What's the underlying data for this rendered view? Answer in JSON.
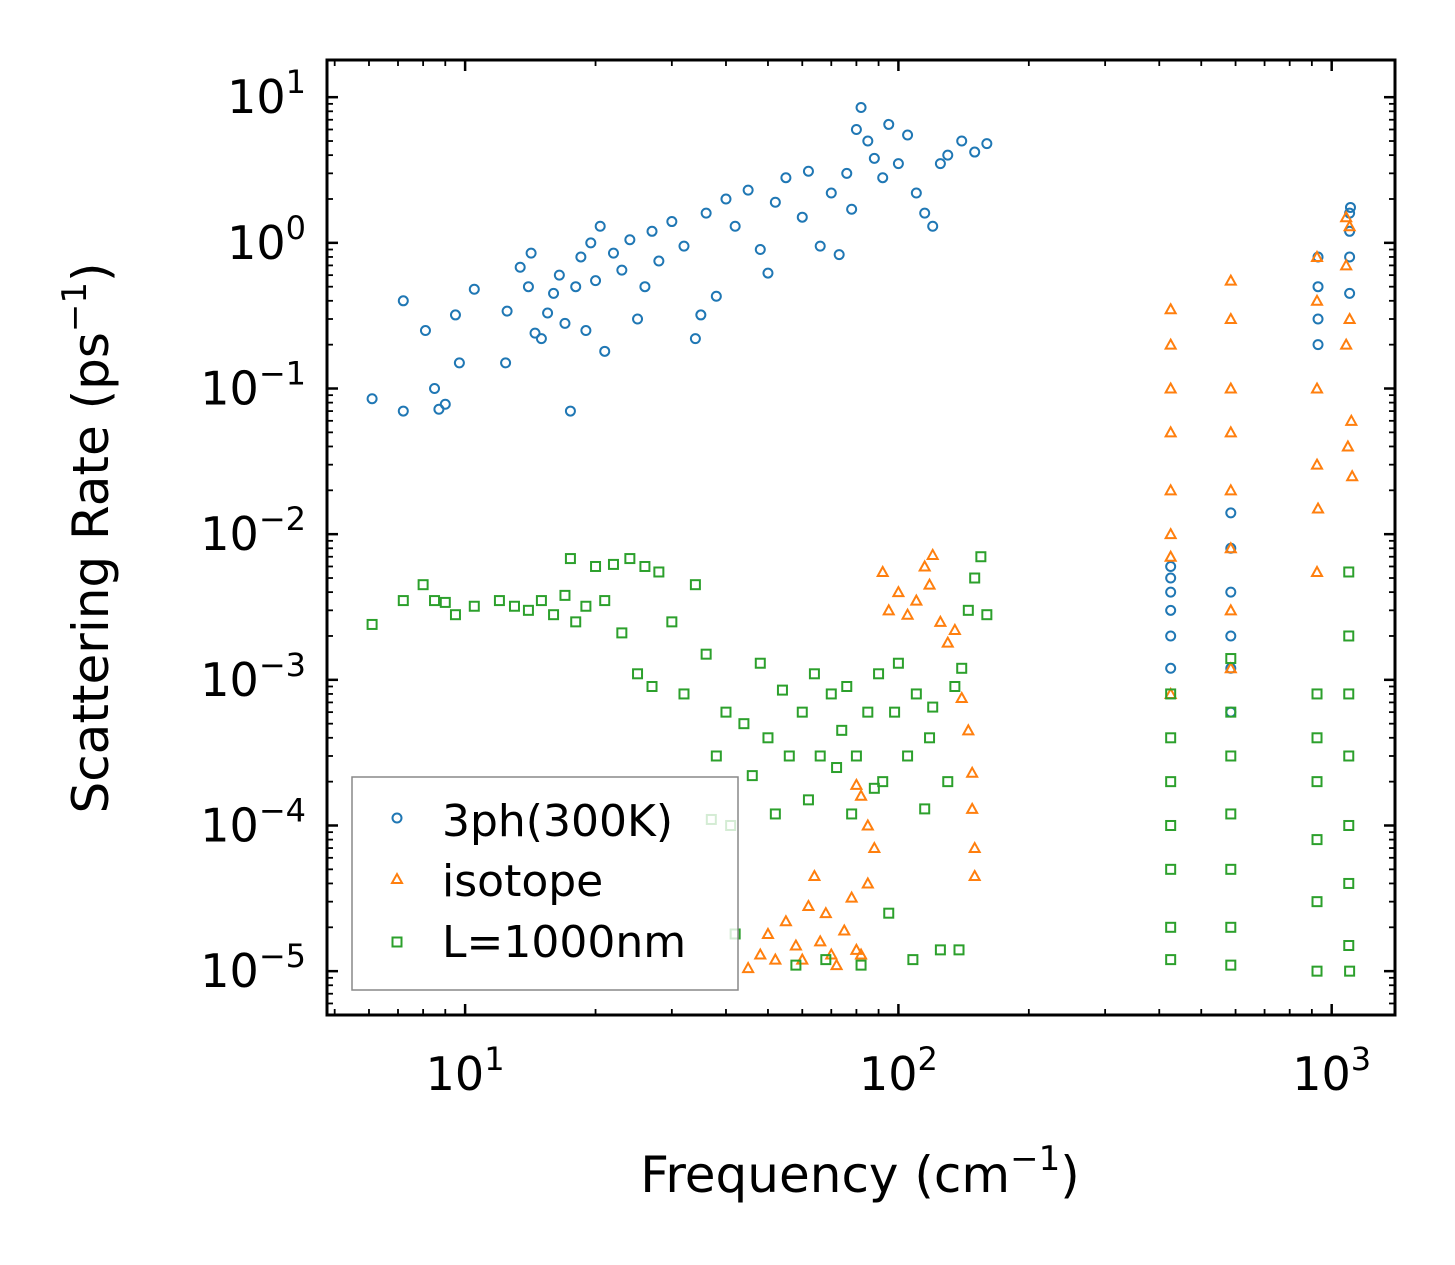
{
  "chart_data": {
    "type": "scatter",
    "title": "",
    "xlabel_main": "Frequency (cm",
    "xlabel_sup": "−1",
    "xlabel_close": ")",
    "ylabel_main": "Scattering Rate (ps",
    "ylabel_sup": "−1",
    "ylabel_close": ")",
    "xscale": "log",
    "yscale": "log",
    "xlim": [
      4.8,
      1400
    ],
    "ylim": [
      5e-06,
      18
    ],
    "x_ticks": [
      {
        "value": 10,
        "base": "10",
        "exp": "1"
      },
      {
        "value": 100,
        "base": "10",
        "exp": "2"
      },
      {
        "value": 1000,
        "base": "10",
        "exp": "3"
      }
    ],
    "y_ticks": [
      {
        "value": 10,
        "base": "10",
        "exp": "1"
      },
      {
        "value": 1,
        "base": "10",
        "exp": "0"
      },
      {
        "value": 0.1,
        "base": "10",
        "exp": "−1"
      },
      {
        "value": 0.01,
        "base": "10",
        "exp": "−2"
      },
      {
        "value": 0.001,
        "base": "10",
        "exp": "−3"
      },
      {
        "value": 0.0001,
        "base": "10",
        "exp": "−4"
      },
      {
        "value": 1e-05,
        "base": "10",
        "exp": "−5"
      }
    ],
    "legend_position": "lower-left",
    "series": [
      {
        "name": "3ph(300K)",
        "marker": "circle",
        "color": "#1f77b4",
        "points": [
          [
            6.1,
            0.085
          ],
          [
            7.2,
            0.07
          ],
          [
            7.2,
            0.4
          ],
          [
            8.1,
            0.25
          ],
          [
            8.5,
            0.1
          ],
          [
            8.7,
            0.072
          ],
          [
            9.0,
            0.078
          ],
          [
            9.5,
            0.32
          ],
          [
            9.7,
            0.15
          ],
          [
            10.5,
            0.48
          ],
          [
            12.4,
            0.15
          ],
          [
            12.5,
            0.34
          ],
          [
            13.4,
            0.68
          ],
          [
            14.0,
            0.5
          ],
          [
            14.2,
            0.85
          ],
          [
            14.5,
            0.24
          ],
          [
            15.0,
            0.22
          ],
          [
            15.5,
            0.33
          ],
          [
            16.0,
            0.45
          ],
          [
            16.5,
            0.6
          ],
          [
            17.0,
            0.28
          ],
          [
            17.5,
            0.07
          ],
          [
            18.0,
            0.5
          ],
          [
            18.5,
            0.8
          ],
          [
            19.0,
            0.25
          ],
          [
            19.5,
            1.0
          ],
          [
            20.0,
            0.55
          ],
          [
            20.5,
            1.3
          ],
          [
            21.0,
            0.18
          ],
          [
            22.0,
            0.85
          ],
          [
            23.0,
            0.65
          ],
          [
            24.0,
            1.05
          ],
          [
            25.0,
            0.3
          ],
          [
            26.0,
            0.5
          ],
          [
            27.0,
            1.2
          ],
          [
            28.0,
            0.75
          ],
          [
            30.0,
            1.4
          ],
          [
            32.0,
            0.95
          ],
          [
            34.0,
            0.22
          ],
          [
            35.0,
            0.32
          ],
          [
            36.0,
            1.6
          ],
          [
            38.0,
            0.43
          ],
          [
            40.0,
            2.0
          ],
          [
            42.0,
            1.3
          ],
          [
            45.0,
            2.3
          ],
          [
            48.0,
            0.9
          ],
          [
            50.0,
            0.62
          ],
          [
            52.0,
            1.9
          ],
          [
            55.0,
            2.8
          ],
          [
            60.0,
            1.5
          ],
          [
            62.0,
            3.1
          ],
          [
            66.0,
            0.95
          ],
          [
            70.0,
            2.2
          ],
          [
            73.0,
            0.83
          ],
          [
            76.0,
            3.0
          ],
          [
            78.0,
            1.7
          ],
          [
            80.0,
            6.0
          ],
          [
            82.0,
            8.5
          ],
          [
            85.0,
            5.0
          ],
          [
            88.0,
            3.8
          ],
          [
            92.0,
            2.8
          ],
          [
            95.0,
            6.5
          ],
          [
            100.0,
            3.5
          ],
          [
            105.0,
            5.5
          ],
          [
            110.0,
            2.2
          ],
          [
            115.0,
            1.6
          ],
          [
            120.0,
            1.3
          ],
          [
            125.0,
            3.5
          ],
          [
            130.0,
            4.0
          ],
          [
            140.0,
            5.0
          ],
          [
            150.0,
            4.2
          ],
          [
            160.0,
            4.8
          ],
          [
            425,
            0.0012
          ],
          [
            425,
            0.002
          ],
          [
            425,
            0.003
          ],
          [
            425,
            0.004
          ],
          [
            425,
            0.005
          ],
          [
            425,
            0.006
          ],
          [
            585,
            0.0006
          ],
          [
            585,
            0.0012
          ],
          [
            585,
            0.002
          ],
          [
            585,
            0.004
          ],
          [
            585,
            0.008
          ],
          [
            585,
            0.014
          ],
          [
            930,
            0.2
          ],
          [
            930,
            0.3
          ],
          [
            930,
            0.5
          ],
          [
            930,
            0.8
          ],
          [
            1100,
            0.45
          ],
          [
            1100,
            0.8
          ],
          [
            1100,
            1.2
          ],
          [
            1100,
            1.6
          ],
          [
            1105,
            1.75
          ]
        ]
      },
      {
        "name": "isotope",
        "marker": "triangle",
        "color": "#ff7f0e",
        "points": [
          [
            45,
            1.05e-05
          ],
          [
            48,
            1.3e-05
          ],
          [
            50,
            1.8e-05
          ],
          [
            52,
            1.2e-05
          ],
          [
            55,
            2.2e-05
          ],
          [
            58,
            1.5e-05
          ],
          [
            60,
            1.2e-05
          ],
          [
            62,
            2.8e-05
          ],
          [
            64,
            4.5e-05
          ],
          [
            66,
            1.6e-05
          ],
          [
            68,
            2.5e-05
          ],
          [
            70,
            1.3e-05
          ],
          [
            72,
            1.1e-05
          ],
          [
            75,
            1.9e-05
          ],
          [
            78,
            3.2e-05
          ],
          [
            80,
            1.4e-05
          ],
          [
            80,
            0.00019
          ],
          [
            82,
            0.00016
          ],
          [
            82,
            1.3e-05
          ],
          [
            85,
            4e-05
          ],
          [
            85,
            0.0001
          ],
          [
            88,
            7e-05
          ],
          [
            92,
            0.0055
          ],
          [
            95,
            0.003
          ],
          [
            100,
            0.004
          ],
          [
            105,
            0.0028
          ],
          [
            110,
            0.0035
          ],
          [
            115,
            0.006
          ],
          [
            118,
            0.0045
          ],
          [
            120,
            0.0072
          ],
          [
            125,
            0.0025
          ],
          [
            130,
            0.0018
          ],
          [
            135,
            0.0022
          ],
          [
            140,
            0.00075
          ],
          [
            145,
            0.00045
          ],
          [
            148,
            0.00023
          ],
          [
            148,
            0.00013
          ],
          [
            150,
            7e-05
          ],
          [
            150,
            4.5e-05
          ],
          [
            425,
            0.35
          ],
          [
            425,
            0.2
          ],
          [
            425,
            0.1
          ],
          [
            425,
            0.05
          ],
          [
            425,
            0.02
          ],
          [
            425,
            0.01
          ],
          [
            425,
            0.007
          ],
          [
            425,
            0.0008
          ],
          [
            585,
            0.55
          ],
          [
            585,
            0.3
          ],
          [
            585,
            0.1
          ],
          [
            585,
            0.05
          ],
          [
            585,
            0.02
          ],
          [
            585,
            0.008
          ],
          [
            585,
            0.003
          ],
          [
            585,
            0.0012
          ],
          [
            925,
            0.8
          ],
          [
            925,
            0.4
          ],
          [
            925,
            0.1
          ],
          [
            925,
            0.03
          ],
          [
            925,
            0.0055
          ],
          [
            930,
            0.015
          ],
          [
            1080,
            1.5
          ],
          [
            1080,
            0.7
          ],
          [
            1080,
            0.2
          ],
          [
            1090,
            0.04
          ],
          [
            1100,
            1.3
          ],
          [
            1100,
            0.3
          ],
          [
            1110,
            0.06
          ],
          [
            1115,
            0.025
          ]
        ]
      },
      {
        "name": "L=1000nm",
        "marker": "square",
        "color": "#2ca02c",
        "points": [
          [
            6.1,
            0.0024
          ],
          [
            7.2,
            0.0035
          ],
          [
            8.0,
            0.0045
          ],
          [
            8.5,
            0.0035
          ],
          [
            9.0,
            0.0034
          ],
          [
            9.5,
            0.0028
          ],
          [
            10.5,
            0.0032
          ],
          [
            12.0,
            0.0035
          ],
          [
            13.0,
            0.0032
          ],
          [
            14.0,
            0.003
          ],
          [
            15.0,
            0.0035
          ],
          [
            16.0,
            0.0028
          ],
          [
            17.0,
            0.0038
          ],
          [
            17.5,
            0.0068
          ],
          [
            18.0,
            0.0025
          ],
          [
            19.0,
            0.0032
          ],
          [
            20.0,
            0.006
          ],
          [
            21.0,
            0.0035
          ],
          [
            22.0,
            0.0062
          ],
          [
            23.0,
            0.0021
          ],
          [
            24.0,
            0.0068
          ],
          [
            25.0,
            0.0011
          ],
          [
            26.0,
            0.006
          ],
          [
            27.0,
            0.0009
          ],
          [
            28.0,
            0.0055
          ],
          [
            30.0,
            0.0025
          ],
          [
            32.0,
            0.0008
          ],
          [
            34.0,
            0.0045
          ],
          [
            36.0,
            0.0015
          ],
          [
            37.0,
            0.00011
          ],
          [
            38.0,
            0.0003
          ],
          [
            40.0,
            0.0006
          ],
          [
            41.0,
            0.0001
          ],
          [
            42.0,
            1.8e-05
          ],
          [
            44.0,
            0.0005
          ],
          [
            46.0,
            0.00022
          ],
          [
            48.0,
            0.0013
          ],
          [
            50.0,
            0.0004
          ],
          [
            52.0,
            0.00012
          ],
          [
            54.0,
            0.00085
          ],
          [
            56.0,
            0.0003
          ],
          [
            58.0,
            1.1e-05
          ],
          [
            60.0,
            0.0006
          ],
          [
            62.0,
            0.00015
          ],
          [
            64.0,
            0.0011
          ],
          [
            66.0,
            0.0003
          ],
          [
            68.0,
            1.2e-05
          ],
          [
            70.0,
            0.0008
          ],
          [
            72.0,
            0.00025
          ],
          [
            74.0,
            0.00045
          ],
          [
            76.0,
            0.0009
          ],
          [
            78.0,
            0.00012
          ],
          [
            80.0,
            0.0003
          ],
          [
            82.0,
            1.1e-05
          ],
          [
            85.0,
            0.0006
          ],
          [
            88.0,
            0.00018
          ],
          [
            90.0,
            0.0011
          ],
          [
            92.0,
            0.0002
          ],
          [
            95.0,
            2.5e-05
          ],
          [
            98.0,
            0.0006
          ],
          [
            100.0,
            0.0013
          ],
          [
            105.0,
            0.0003
          ],
          [
            108.0,
            1.2e-05
          ],
          [
            110.0,
            0.0008
          ],
          [
            115.0,
            0.00013
          ],
          [
            118.0,
            0.0004
          ],
          [
            120.0,
            0.00065
          ],
          [
            125.0,
            1.4e-05
          ],
          [
            130.0,
            0.0002
          ],
          [
            135.0,
            0.0009
          ],
          [
            138.0,
            1.4e-05
          ],
          [
            140.0,
            0.0012
          ],
          [
            145.0,
            0.003
          ],
          [
            150.0,
            0.005
          ],
          [
            155.0,
            0.007
          ],
          [
            160.0,
            0.0028
          ],
          [
            425,
            0.0008
          ],
          [
            425,
            0.0004
          ],
          [
            425,
            0.0002
          ],
          [
            425,
            0.0001
          ],
          [
            425,
            5e-05
          ],
          [
            425,
            2e-05
          ],
          [
            425,
            1.2e-05
          ],
          [
            585,
            0.0014
          ],
          [
            585,
            0.0006
          ],
          [
            585,
            0.0003
          ],
          [
            585,
            0.00012
          ],
          [
            585,
            5e-05
          ],
          [
            585,
            2e-05
          ],
          [
            585,
            1.1e-05
          ],
          [
            925,
            0.0008
          ],
          [
            925,
            0.0004
          ],
          [
            925,
            0.0002
          ],
          [
            925,
            8e-05
          ],
          [
            925,
            3e-05
          ],
          [
            925,
            1e-05
          ],
          [
            1095,
            0.0055
          ],
          [
            1095,
            0.002
          ],
          [
            1095,
            0.0008
          ],
          [
            1095,
            0.0003
          ],
          [
            1095,
            0.0001
          ],
          [
            1095,
            4e-05
          ],
          [
            1095,
            1.5e-05
          ],
          [
            1100,
            1e-05
          ]
        ]
      }
    ],
    "legend": [
      "3ph(300K)",
      "isotope",
      "L=1000nm"
    ]
  }
}
